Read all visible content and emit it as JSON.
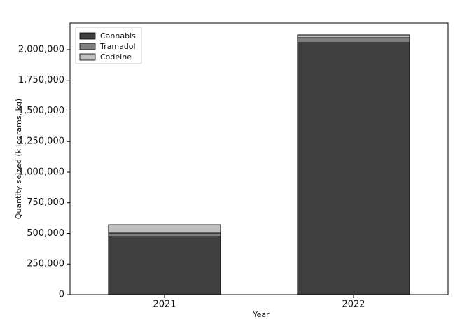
{
  "chart_data": {
    "type": "stacked_bar",
    "xlabel": "Year",
    "ylabel": "Quantity seized (kilograms, kg)",
    "categories": [
      "2021",
      "2022"
    ],
    "series": [
      {
        "name": "Cannabis",
        "color": "#404040",
        "values": [
          474000,
          2057000
        ]
      },
      {
        "name": "Tramadol",
        "color": "#7f7f7f",
        "values": [
          29000,
          40000
        ]
      },
      {
        "name": "Codeine",
        "color": "#bfbfbf",
        "values": [
          68000,
          23000
        ]
      }
    ],
    "ylim": [
      0,
      2217000
    ],
    "yticks": [
      0,
      {
        "value": 250000,
        "label": "250,000"
      },
      {
        "value": 500000,
        "label": "500,000"
      },
      {
        "value": 750000,
        "label": "750,000"
      },
      {
        "value": 1000000,
        "label": "1,000,000"
      },
      {
        "value": 1250000,
        "label": "1,250,000"
      },
      {
        "value": 1500000,
        "label": "1,500,000"
      },
      {
        "value": 1750000,
        "label": "1,750,000"
      },
      {
        "value": 2000000,
        "label": "2,000,000"
      }
    ],
    "legend": "upper left"
  }
}
